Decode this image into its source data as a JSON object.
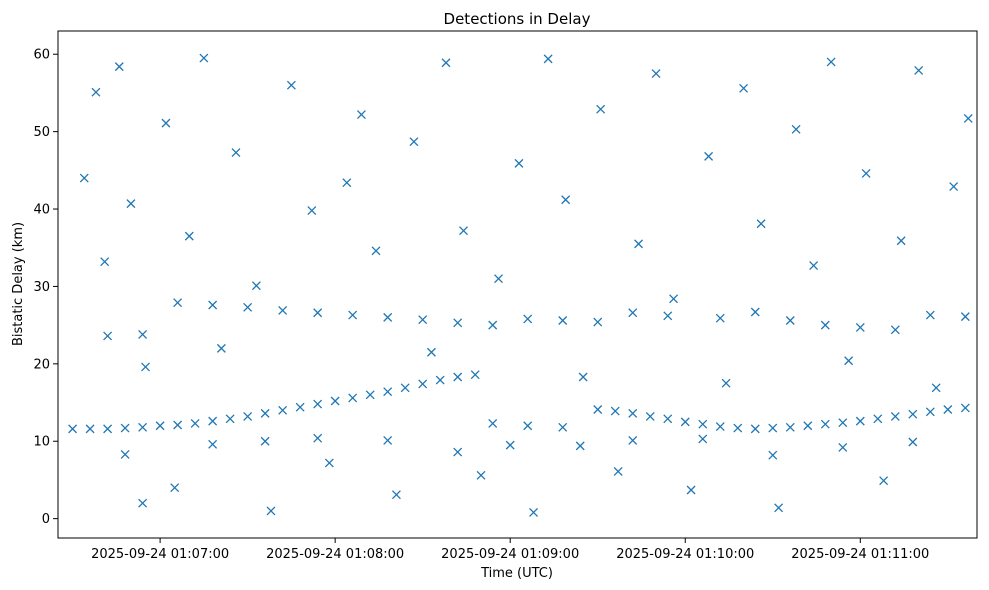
{
  "chart_data": {
    "type": "scatter",
    "title": "Detections in Delay",
    "xlabel": "Time (UTC)",
    "ylabel": "Bistatic Delay (km)",
    "x_range": [
      "2025-09-24 01:06:25",
      "2025-09-24 01:11:40"
    ],
    "ylim": [
      -2.5,
      63
    ],
    "x_ticks": [
      "2025-09-24 01:07:00",
      "2025-09-24 01:08:00",
      "2025-09-24 01:09:00",
      "2025-09-24 01:10:00",
      "2025-09-24 01:11:00"
    ],
    "y_ticks": [
      0,
      10,
      20,
      30,
      40,
      50,
      60
    ],
    "marker": "x",
    "marker_color": "#1f77b4",
    "grid": false,
    "series": [
      {
        "name": "",
        "points": [
          [
            "2025-09-24 01:06:30",
            11.6
          ],
          [
            "2025-09-24 01:06:36",
            11.6
          ],
          [
            "2025-09-24 01:06:42",
            11.6
          ],
          [
            "2025-09-24 01:06:48",
            11.7
          ],
          [
            "2025-09-24 01:06:54",
            11.8
          ],
          [
            "2025-09-24 01:07:00",
            12.0
          ],
          [
            "2025-09-24 01:07:06",
            12.1
          ],
          [
            "2025-09-24 01:07:12",
            12.3
          ],
          [
            "2025-09-24 01:07:18",
            12.6
          ],
          [
            "2025-09-24 01:07:24",
            12.9
          ],
          [
            "2025-09-24 01:07:30",
            13.2
          ],
          [
            "2025-09-24 01:07:36",
            13.6
          ],
          [
            "2025-09-24 01:07:42",
            14.0
          ],
          [
            "2025-09-24 01:07:48",
            14.4
          ],
          [
            "2025-09-24 01:07:54",
            14.8
          ],
          [
            "2025-09-24 01:08:00",
            15.2
          ],
          [
            "2025-09-24 01:08:06",
            15.6
          ],
          [
            "2025-09-24 01:08:12",
            16.0
          ],
          [
            "2025-09-24 01:08:18",
            16.4
          ],
          [
            "2025-09-24 01:08:24",
            16.9
          ],
          [
            "2025-09-24 01:08:30",
            17.4
          ],
          [
            "2025-09-24 01:08:36",
            17.9
          ],
          [
            "2025-09-24 01:08:42",
            18.3
          ],
          [
            "2025-09-24 01:08:48",
            18.6
          ],
          [
            "2025-09-24 01:08:54",
            12.3
          ],
          [
            "2025-09-24 01:09:06",
            12.0
          ],
          [
            "2025-09-24 01:09:18",
            11.8
          ],
          [
            "2025-09-24 01:09:30",
            14.1
          ],
          [
            "2025-09-24 01:09:36",
            13.9
          ],
          [
            "2025-09-24 01:09:42",
            13.6
          ],
          [
            "2025-09-24 01:09:48",
            13.2
          ],
          [
            "2025-09-24 01:09:54",
            12.9
          ],
          [
            "2025-09-24 01:10:00",
            12.5
          ],
          [
            "2025-09-24 01:10:06",
            12.2
          ],
          [
            "2025-09-24 01:10:12",
            11.9
          ],
          [
            "2025-09-24 01:10:18",
            11.7
          ],
          [
            "2025-09-24 01:10:24",
            11.6
          ],
          [
            "2025-09-24 01:10:30",
            11.7
          ],
          [
            "2025-09-24 01:10:36",
            11.8
          ],
          [
            "2025-09-24 01:10:42",
            12.0
          ],
          [
            "2025-09-24 01:10:48",
            12.2
          ],
          [
            "2025-09-24 01:10:54",
            12.4
          ],
          [
            "2025-09-24 01:11:00",
            12.6
          ],
          [
            "2025-09-24 01:11:06",
            12.9
          ],
          [
            "2025-09-24 01:11:12",
            13.2
          ],
          [
            "2025-09-24 01:11:18",
            13.5
          ],
          [
            "2025-09-24 01:11:24",
            13.8
          ],
          [
            "2025-09-24 01:11:30",
            14.1
          ],
          [
            "2025-09-24 01:11:36",
            14.3
          ],
          [
            "2025-09-24 01:06:42",
            23.6
          ],
          [
            "2025-09-24 01:06:54",
            23.8
          ],
          [
            "2025-09-24 01:07:06",
            27.9
          ],
          [
            "2025-09-24 01:07:18",
            27.6
          ],
          [
            "2025-09-24 01:07:30",
            27.3
          ],
          [
            "2025-09-24 01:07:42",
            26.9
          ],
          [
            "2025-09-24 01:07:54",
            26.6
          ],
          [
            "2025-09-24 01:08:06",
            26.3
          ],
          [
            "2025-09-24 01:08:18",
            26.0
          ],
          [
            "2025-09-24 01:08:30",
            25.7
          ],
          [
            "2025-09-24 01:08:42",
            25.3
          ],
          [
            "2025-09-24 01:08:54",
            25.0
          ],
          [
            "2025-09-24 01:09:06",
            25.8
          ],
          [
            "2025-09-24 01:09:18",
            25.6
          ],
          [
            "2025-09-24 01:09:30",
            25.4
          ],
          [
            "2025-09-24 01:09:42",
            26.6
          ],
          [
            "2025-09-24 01:09:54",
            26.2
          ],
          [
            "2025-09-24 01:10:12",
            25.9
          ],
          [
            "2025-09-24 01:10:24",
            26.7
          ],
          [
            "2025-09-24 01:10:36",
            25.6
          ],
          [
            "2025-09-24 01:10:48",
            25.0
          ],
          [
            "2025-09-24 01:11:00",
            24.7
          ],
          [
            "2025-09-24 01:11:12",
            24.4
          ],
          [
            "2025-09-24 01:11:24",
            26.3
          ],
          [
            "2025-09-24 01:11:36",
            26.1
          ],
          [
            "2025-09-24 01:06:48",
            8.3
          ],
          [
            "2025-09-24 01:06:54",
            2.0
          ],
          [
            "2025-09-24 01:07:18",
            9.6
          ],
          [
            "2025-09-24 01:07:36",
            10.0
          ],
          [
            "2025-09-24 01:07:54",
            10.4
          ],
          [
            "2025-09-24 01:08:18",
            10.1
          ],
          [
            "2025-09-24 01:08:42",
            8.6
          ],
          [
            "2025-09-24 01:09:00",
            9.5
          ],
          [
            "2025-09-24 01:09:24",
            9.4
          ],
          [
            "2025-09-24 01:09:42",
            10.1
          ],
          [
            "2025-09-24 01:10:06",
            10.3
          ],
          [
            "2025-09-24 01:10:30",
            8.2
          ],
          [
            "2025-09-24 01:10:54",
            9.2
          ],
          [
            "2025-09-24 01:11:18",
            9.9
          ],
          [
            "2025-09-24 01:06:34",
            44.0
          ],
          [
            "2025-09-24 01:06:38",
            55.1
          ],
          [
            "2025-09-24 01:06:41",
            33.2
          ],
          [
            "2025-09-24 01:06:46",
            58.4
          ],
          [
            "2025-09-24 01:06:50",
            40.7
          ],
          [
            "2025-09-24 01:06:55",
            19.6
          ],
          [
            "2025-09-24 01:07:02",
            51.1
          ],
          [
            "2025-09-24 01:07:05",
            4.0
          ],
          [
            "2025-09-24 01:07:10",
            36.5
          ],
          [
            "2025-09-24 01:07:15",
            59.5
          ],
          [
            "2025-09-24 01:07:21",
            22.0
          ],
          [
            "2025-09-24 01:07:26",
            47.3
          ],
          [
            "2025-09-24 01:07:33",
            30.1
          ],
          [
            "2025-09-24 01:07:38",
            1.0
          ],
          [
            "2025-09-24 01:07:45",
            56.0
          ],
          [
            "2025-09-24 01:07:52",
            39.8
          ],
          [
            "2025-09-24 01:07:58",
            7.2
          ],
          [
            "2025-09-24 01:08:04",
            43.4
          ],
          [
            "2025-09-24 01:08:09",
            52.2
          ],
          [
            "2025-09-24 01:08:14",
            34.6
          ],
          [
            "2025-09-24 01:08:21",
            3.1
          ],
          [
            "2025-09-24 01:08:27",
            48.7
          ],
          [
            "2025-09-24 01:08:33",
            21.5
          ],
          [
            "2025-09-24 01:08:38",
            58.9
          ],
          [
            "2025-09-24 01:08:44",
            37.2
          ],
          [
            "2025-09-24 01:08:50",
            5.6
          ],
          [
            "2025-09-24 01:08:56",
            31.0
          ],
          [
            "2025-09-24 01:09:03",
            45.9
          ],
          [
            "2025-09-24 01:09:08",
            0.8
          ],
          [
            "2025-09-24 01:09:13",
            59.4
          ],
          [
            "2025-09-24 01:09:19",
            41.2
          ],
          [
            "2025-09-24 01:09:25",
            18.3
          ],
          [
            "2025-09-24 01:09:31",
            52.9
          ],
          [
            "2025-09-24 01:09:37",
            6.1
          ],
          [
            "2025-09-24 01:09:44",
            35.5
          ],
          [
            "2025-09-24 01:09:50",
            57.5
          ],
          [
            "2025-09-24 01:09:56",
            28.4
          ],
          [
            "2025-09-24 01:10:02",
            3.7
          ],
          [
            "2025-09-24 01:10:08",
            46.8
          ],
          [
            "2025-09-24 01:10:14",
            17.5
          ],
          [
            "2025-09-24 01:10:20",
            55.6
          ],
          [
            "2025-09-24 01:10:26",
            38.1
          ],
          [
            "2025-09-24 01:10:32",
            1.4
          ],
          [
            "2025-09-24 01:10:38",
            50.3
          ],
          [
            "2025-09-24 01:10:44",
            32.7
          ],
          [
            "2025-09-24 01:10:50",
            59.0
          ],
          [
            "2025-09-24 01:10:56",
            20.4
          ],
          [
            "2025-09-24 01:11:02",
            44.6
          ],
          [
            "2025-09-24 01:11:08",
            4.9
          ],
          [
            "2025-09-24 01:11:14",
            35.9
          ],
          [
            "2025-09-24 01:11:20",
            57.9
          ],
          [
            "2025-09-24 01:11:26",
            16.9
          ],
          [
            "2025-09-24 01:11:32",
            42.9
          ],
          [
            "2025-09-24 01:11:37",
            51.7
          ]
        ]
      }
    ]
  }
}
